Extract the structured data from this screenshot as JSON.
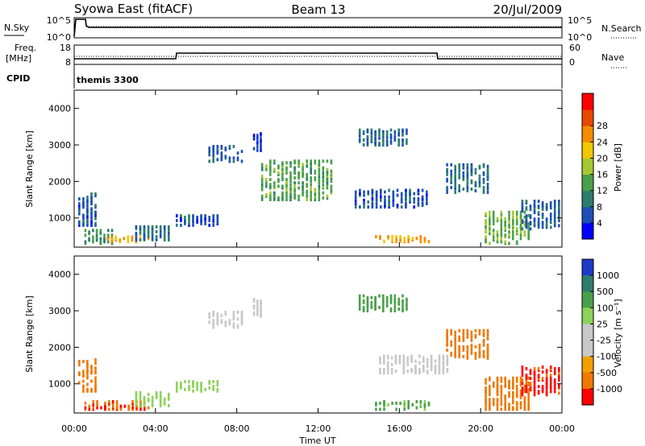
{
  "header": {
    "station": "Syowa East (fitACF)",
    "beam": "Beam 13",
    "date": "20/Jul/2009"
  },
  "nsky_panel": {
    "left_label": "N.Sky",
    "left_ticks": [
      "10^5",
      "10^0"
    ],
    "right_ticks": [
      "10^5",
      "10^0"
    ],
    "right_label": "N.Search"
  },
  "freq_panel": {
    "left_label_line1": "Freq.",
    "left_label_line2": "[MHz]",
    "left_ticks": [
      "18",
      "8"
    ],
    "right_ticks": [
      "60",
      "0"
    ],
    "right_label": "Nave"
  },
  "cpid_panel": {
    "label": "CPID",
    "value": "themis 3300"
  },
  "time_axis": {
    "tick_labels": [
      "00:00",
      "04:00",
      "08:00",
      "12:00",
      "16:00",
      "20:00",
      "00:00"
    ],
    "title": "Time UT"
  },
  "chart_data": [
    {
      "type": "heatmap",
      "title": "",
      "xlabel": "Time UT",
      "ylabel": "Slant Range [km]",
      "xlim_hours": [
        0,
        24
      ],
      "ylim_km": [
        200,
        4500
      ],
      "y_ticks": [
        "1000",
        "2000",
        "3000",
        "4000"
      ],
      "colorbar": {
        "label": "Power [dB]",
        "ticks": [
          "4",
          "8",
          "12",
          "16",
          "20",
          "24",
          "28"
        ],
        "colors": [
          "#0000ff",
          "#1e4fb5",
          "#2d7d6e",
          "#4aa04a",
          "#a6c832",
          "#f0c800",
          "#f58c00",
          "#e84800",
          "#ff0000"
        ]
      },
      "regions": [
        {
          "t0": 0.2,
          "t1": 1.2,
          "r0": 800,
          "r1": 1700,
          "v": 6
        },
        {
          "t0": 0.5,
          "t1": 2.0,
          "r0": 300,
          "r1": 700,
          "v": 13
        },
        {
          "t0": 1.6,
          "t1": 3.8,
          "r0": 350,
          "r1": 520,
          "v": 24
        },
        {
          "t0": 3.0,
          "t1": 4.8,
          "r0": 400,
          "r1": 800,
          "v": 9
        },
        {
          "t0": 5.0,
          "t1": 7.2,
          "r0": 800,
          "r1": 1100,
          "v": 6
        },
        {
          "t0": 6.6,
          "t1": 8.4,
          "r0": 2550,
          "r1": 3000,
          "v": 7
        },
        {
          "t0": 8.8,
          "t1": 9.3,
          "r0": 2850,
          "r1": 3350,
          "v": 5
        },
        {
          "t0": 9.2,
          "t1": 12.8,
          "r0": 1500,
          "r1": 2600,
          "v": 14
        },
        {
          "t0": 14.0,
          "t1": 16.5,
          "r0": 3000,
          "r1": 3450,
          "v": 8
        },
        {
          "t0": 13.8,
          "t1": 17.5,
          "r0": 1300,
          "r1": 1800,
          "v": 6
        },
        {
          "t0": 14.8,
          "t1": 17.6,
          "r0": 350,
          "r1": 530,
          "v": 25
        },
        {
          "t0": 18.3,
          "t1": 20.5,
          "r0": 1700,
          "r1": 2500,
          "v": 8
        },
        {
          "t0": 20.2,
          "t1": 22.5,
          "r0": 300,
          "r1": 1200,
          "v": 15
        },
        {
          "t0": 22.0,
          "t1": 24.0,
          "r0": 700,
          "r1": 1500,
          "v": 7
        }
      ]
    },
    {
      "type": "heatmap",
      "title": "",
      "xlabel": "Time UT",
      "ylabel": "Slant Range [km]",
      "xlim_hours": [
        0,
        24
      ],
      "ylim_km": [
        200,
        4500
      ],
      "y_ticks": [
        "1000",
        "2000",
        "3000",
        "4000"
      ],
      "colorbar": {
        "label": "Velocity [m s⁻¹]",
        "ticks": [
          "1000",
          "500",
          "100",
          "25",
          "-25",
          "-100",
          "-500",
          "-1000"
        ],
        "colors": [
          "#1e3cc8",
          "#2d7d6e",
          "#4aa04a",
          "#8cd25a",
          "#c8c8c8",
          "#c8c8c8",
          "#f0a000",
          "#f07800",
          "#ff0000"
        ]
      },
      "regions": [
        {
          "t0": 0.2,
          "t1": 1.2,
          "r0": 800,
          "r1": 1700,
          "v": -300
        },
        {
          "t0": 0.5,
          "t1": 3.8,
          "r0": 300,
          "r1": 550,
          "v": -450
        },
        {
          "t0": 3.0,
          "t1": 4.8,
          "r0": 400,
          "r1": 800,
          "v": 60
        },
        {
          "t0": 5.0,
          "t1": 7.2,
          "r0": 800,
          "r1": 1100,
          "v": 60
        },
        {
          "t0": 6.6,
          "t1": 8.4,
          "r0": 2550,
          "r1": 3000,
          "v": 0
        },
        {
          "t0": 8.8,
          "t1": 9.3,
          "r0": 2850,
          "r1": 3350,
          "v": 0
        },
        {
          "t0": 14.0,
          "t1": 16.5,
          "r0": 3000,
          "r1": 3450,
          "v": 300
        },
        {
          "t0": 14.8,
          "t1": 17.6,
          "r0": 300,
          "r1": 550,
          "v": 120
        },
        {
          "t0": 15.0,
          "t1": 18.5,
          "r0": 1300,
          "r1": 1800,
          "v": 0
        },
        {
          "t0": 18.3,
          "t1": 20.5,
          "r0": 1700,
          "r1": 2500,
          "v": -300
        },
        {
          "t0": 20.2,
          "t1": 22.5,
          "r0": 300,
          "r1": 1200,
          "v": -300
        },
        {
          "t0": 22.0,
          "t1": 24.0,
          "r0": 700,
          "r1": 1500,
          "v": -600
        }
      ]
    }
  ]
}
